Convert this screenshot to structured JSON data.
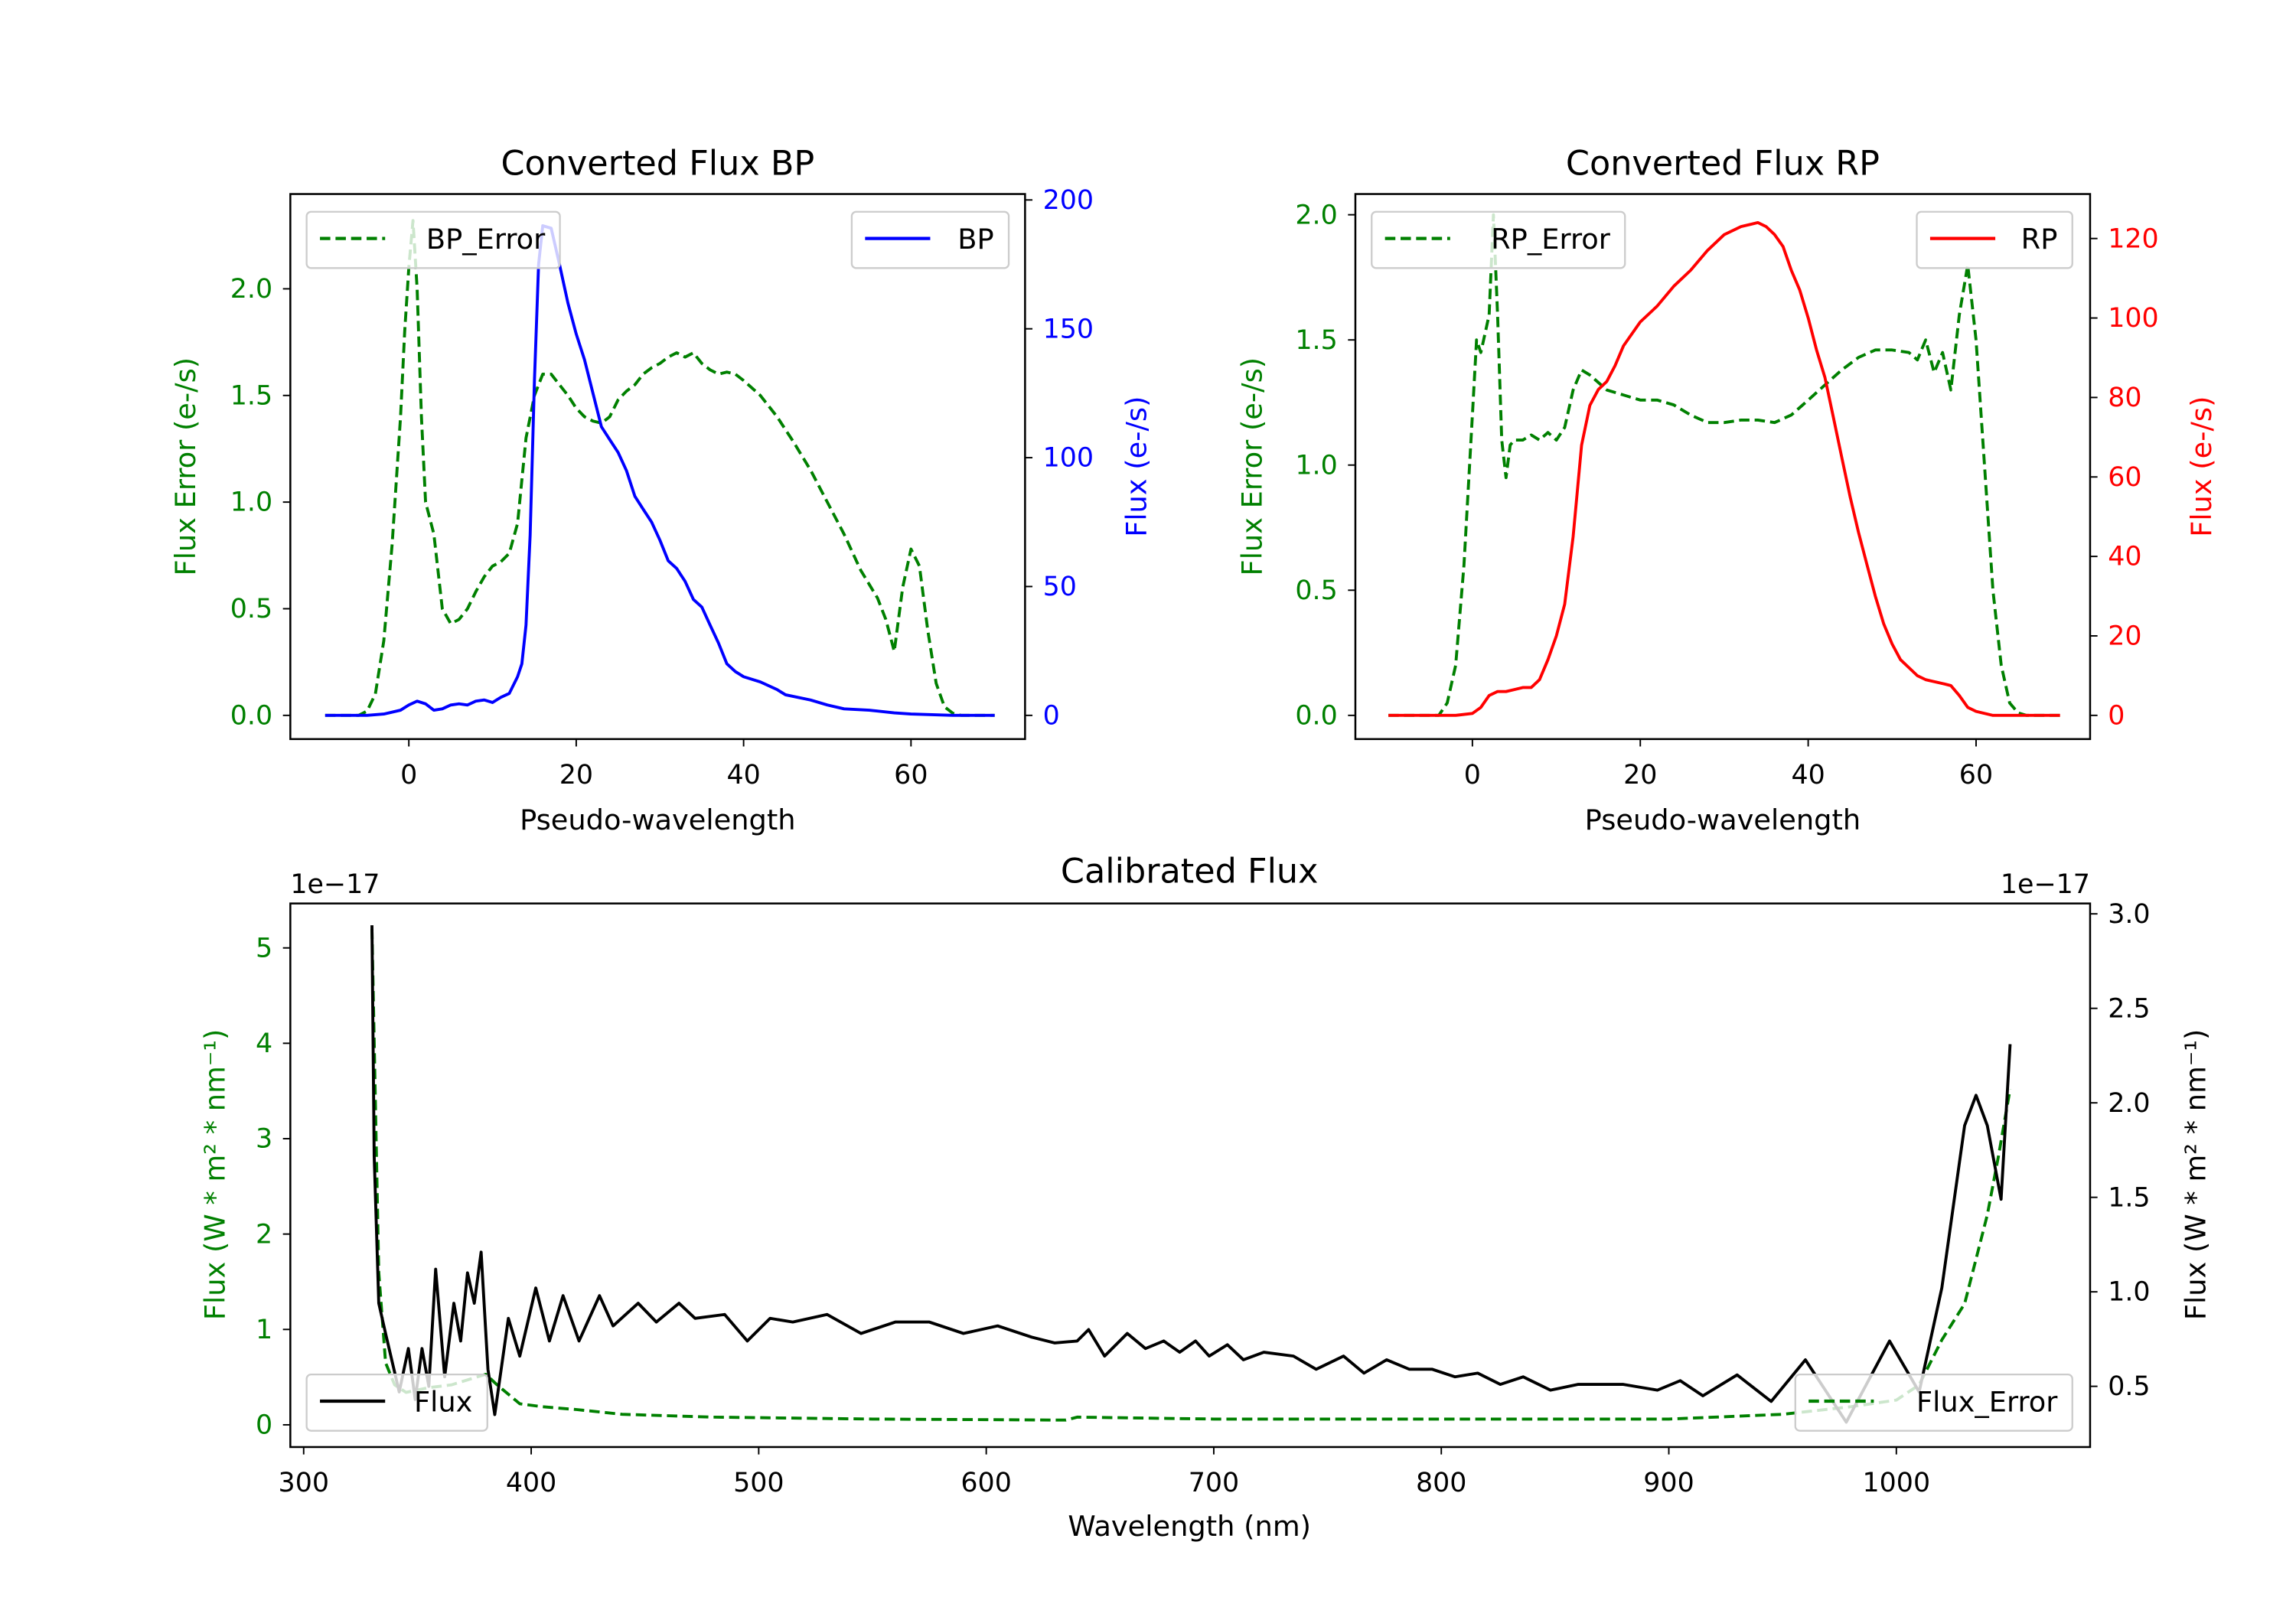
{
  "colors": {
    "green": "#008000",
    "blue": "#0000ff",
    "red": "#ff0000",
    "black": "#000000"
  },
  "chart_data": [
    {
      "type": "line",
      "title": "Converted Flux BP",
      "xlabel": "Pseudo-wavelength",
      "ylabel_left": "Flux Error (e-/s)",
      "ylabel_right": "Flux (e-/s)",
      "xlim": [
        -12,
        72
      ],
      "ylim_left": [
        -0.1,
        2.4
      ],
      "ylim_right": [
        -9,
        200
      ],
      "xticks": [
        "0",
        "20",
        "40",
        "60"
      ],
      "yticks_left": [
        "0.0",
        "0.5",
        "1.0",
        "1.5",
        "2.0"
      ],
      "yticks_right": [
        "0",
        "50",
        "100",
        "150",
        "200"
      ],
      "legend_left": {
        "label": "BP_Error",
        "placement": "upper left"
      },
      "legend_right": {
        "label": "BP",
        "placement": "upper right"
      },
      "series": [
        {
          "name": "BP_Error",
          "axis": "left",
          "style": "dashed",
          "color": "#008000",
          "x": [
            -10,
            -6,
            -5,
            -4,
            -3,
            -2,
            -1,
            -0.5,
            0,
            0.5,
            1,
            1.5,
            2,
            3,
            4,
            5,
            6,
            7,
            8,
            9,
            10,
            11,
            12,
            13,
            14,
            15,
            16,
            17,
            18,
            19,
            20,
            21,
            22,
            23,
            24,
            25,
            26,
            27,
            28,
            29,
            30,
            31,
            32,
            33,
            34,
            35,
            36,
            37,
            38,
            39,
            40,
            42,
            44,
            46,
            48,
            50,
            52,
            54,
            56,
            57,
            58,
            59,
            60,
            61,
            62,
            63,
            64,
            65,
            66,
            70
          ],
          "y": [
            0,
            0,
            0.02,
            0.1,
            0.35,
            0.8,
            1.4,
            1.8,
            2.1,
            2.32,
            2.0,
            1.4,
            1.0,
            0.85,
            0.5,
            0.43,
            0.45,
            0.5,
            0.58,
            0.65,
            0.7,
            0.72,
            0.76,
            0.9,
            1.3,
            1.5,
            1.6,
            1.6,
            1.55,
            1.5,
            1.44,
            1.4,
            1.38,
            1.37,
            1.4,
            1.48,
            1.52,
            1.55,
            1.6,
            1.63,
            1.65,
            1.68,
            1.7,
            1.68,
            1.7,
            1.65,
            1.62,
            1.6,
            1.61,
            1.6,
            1.57,
            1.5,
            1.4,
            1.28,
            1.15,
            1.0,
            0.85,
            0.68,
            0.55,
            0.45,
            0.3,
            0.6,
            0.78,
            0.7,
            0.4,
            0.15,
            0.04,
            0.01,
            0,
            0
          ]
        },
        {
          "name": "BP",
          "axis": "right",
          "style": "solid",
          "color": "#0000ff",
          "x": [
            -10,
            -5,
            -3,
            -1,
            0,
            1,
            2,
            3,
            4,
            5,
            6,
            7,
            8,
            9,
            10,
            11,
            12,
            13,
            13.5,
            14,
            14.5,
            15,
            15.5,
            16,
            17,
            18,
            19,
            20,
            21,
            22,
            23,
            24,
            25,
            26,
            27,
            28,
            29,
            30,
            31,
            32,
            33,
            34,
            35,
            36,
            37,
            38,
            39,
            40,
            42,
            44,
            45,
            48,
            50,
            52,
            55,
            58,
            60,
            65,
            70
          ],
          "y": [
            0,
            0,
            0.5,
            2,
            4,
            5.5,
            4.5,
            2,
            2.5,
            4,
            4.5,
            4,
            5.5,
            6,
            5,
            7,
            8.5,
            15,
            20,
            35,
            70,
            130,
            175,
            190,
            189,
            175,
            160,
            148,
            138,
            125,
            112,
            107,
            102,
            95,
            85,
            80,
            75,
            68,
            60,
            57,
            52,
            45,
            42,
            35,
            28,
            20,
            17,
            15,
            13,
            10,
            8,
            6,
            4,
            2.5,
            2,
            1,
            0.5,
            0,
            0
          ]
        }
      ]
    },
    {
      "type": "line",
      "title": "Converted Flux RP",
      "xlabel": "Pseudo-wavelength",
      "ylabel_left": "Flux Error (e-/s)",
      "ylabel_right": "Flux (e-/s)",
      "xlim": [
        -12,
        72
      ],
      "ylim_left": [
        -0.1,
        2.05
      ],
      "ylim_right": [
        -6,
        130
      ],
      "xticks": [
        "0",
        "20",
        "40",
        "60"
      ],
      "yticks_left": [
        "0.0",
        "0.5",
        "1.0",
        "1.5",
        "2.0"
      ],
      "yticks_right": [
        "0",
        "20",
        "40",
        "60",
        "80",
        "100",
        "120"
      ],
      "legend_left": {
        "label": "RP_Error",
        "placement": "upper left"
      },
      "legend_right": {
        "label": "RP",
        "placement": "upper right"
      },
      "series": [
        {
          "name": "RP_Error",
          "axis": "left",
          "style": "dashed",
          "color": "#008000",
          "x": [
            -10,
            -4,
            -3,
            -2,
            -1,
            0,
            0.5,
            1,
            2,
            2.5,
            3,
            3.5,
            4,
            4.5,
            5,
            6,
            7,
            8,
            9,
            10,
            11,
            12,
            13,
            14,
            16,
            18,
            20,
            22,
            24,
            26,
            28,
            30,
            32,
            34,
            36,
            38,
            40,
            42,
            44,
            46,
            48,
            50,
            52,
            53,
            54,
            55,
            56,
            57,
            58,
            59,
            60,
            61,
            62,
            63,
            64,
            65,
            66,
            70
          ],
          "y": [
            0,
            0,
            0.05,
            0.2,
            0.6,
            1.2,
            1.5,
            1.45,
            1.6,
            2.0,
            1.6,
            1.1,
            0.95,
            1.08,
            1.1,
            1.1,
            1.12,
            1.1,
            1.13,
            1.1,
            1.15,
            1.3,
            1.38,
            1.36,
            1.3,
            1.28,
            1.26,
            1.26,
            1.24,
            1.2,
            1.17,
            1.17,
            1.18,
            1.18,
            1.17,
            1.2,
            1.26,
            1.32,
            1.38,
            1.43,
            1.46,
            1.46,
            1.45,
            1.42,
            1.5,
            1.37,
            1.45,
            1.3,
            1.6,
            1.8,
            1.5,
            1.0,
            0.5,
            0.2,
            0.05,
            0.01,
            0,
            0
          ]
        },
        {
          "name": "RP",
          "axis": "right",
          "style": "solid",
          "color": "#ff0000",
          "x": [
            -10,
            -2,
            0,
            1,
            2,
            3,
            4,
            5,
            6,
            7,
            8,
            9,
            10,
            11,
            12,
            13,
            14,
            15,
            16,
            17,
            18,
            20,
            22,
            24,
            26,
            28,
            30,
            32,
            34,
            35,
            36,
            37,
            38,
            39,
            40,
            41,
            42,
            43,
            44,
            45,
            46,
            47,
            48,
            49,
            50,
            51,
            52,
            53,
            54,
            55,
            56,
            57,
            58,
            59,
            60,
            62,
            70
          ],
          "y": [
            0,
            0,
            0.5,
            2,
            5,
            6,
            6,
            6.5,
            7,
            7,
            9,
            14,
            20,
            28,
            45,
            68,
            78,
            82,
            84,
            88,
            93,
            99,
            103,
            108,
            112,
            117,
            121,
            123,
            124,
            123,
            121,
            118,
            112,
            107,
            100,
            92,
            85,
            75,
            65,
            55,
            46,
            38,
            30,
            23,
            18,
            14,
            12,
            10,
            9,
            8.5,
            8,
            7.5,
            5,
            2,
            1,
            0,
            0
          ]
        }
      ]
    },
    {
      "type": "line",
      "title": "Calibrated Flux",
      "xlabel": "Wavelength (nm)",
      "ylabel_left": "Flux (W * m² * nm⁻¹)",
      "ylabel_right": "Flux (W * m² * nm⁻¹)",
      "offset_left": "1e−17",
      "offset_right": "1e−17",
      "xlim": [
        294,
        1086
      ],
      "ylim_left": [
        -0.25,
        5.45
      ],
      "ylim_right": [
        0.18,
        3.05
      ],
      "xticks": [
        "300",
        "400",
        "500",
        "600",
        "700",
        "800",
        "900",
        "1000"
      ],
      "yticks_left": [
        "0",
        "1",
        "2",
        "3",
        "4",
        "5"
      ],
      "yticks_right": [
        "0.5",
        "1.0",
        "1.5",
        "2.0",
        "2.5",
        "3.0"
      ],
      "legend_left": {
        "label": "Flux",
        "placement": "lower left"
      },
      "legend_right": {
        "label": "Flux_Error",
        "placement": "lower right"
      },
      "series": [
        {
          "name": "Flux_Error",
          "axis": "left",
          "style": "dashed",
          "color": "#008000",
          "scale": "1e-17",
          "x": [
            330,
            333,
            336,
            340,
            345,
            355,
            365,
            380,
            385,
            395,
            405,
            420,
            440,
            480,
            550,
            635,
            640,
            700,
            900,
            950,
            980,
            1000,
            1010,
            1020,
            1030,
            1040,
            1045,
            1050
          ],
          "y": [
            5.2,
            1.6,
            0.65,
            0.42,
            0.34,
            0.39,
            0.42,
            0.53,
            0.42,
            0.22,
            0.19,
            0.16,
            0.11,
            0.08,
            0.06,
            0.05,
            0.08,
            0.06,
            0.06,
            0.11,
            0.19,
            0.26,
            0.42,
            0.89,
            1.27,
            2.2,
            2.83,
            3.52
          ]
        },
        {
          "name": "Flux",
          "axis": "right",
          "style": "solid",
          "color": "#000000",
          "scale": "1e-17",
          "x": [
            330,
            331,
            333,
            336,
            342,
            346,
            349,
            352,
            355,
            358,
            362,
            366,
            369,
            372,
            375,
            378,
            381,
            384,
            390,
            395,
            402,
            408,
            414,
            421,
            430,
            436,
            447,
            455,
            465,
            472,
            485,
            495,
            505,
            515,
            530,
            545,
            560,
            575,
            590,
            605,
            620,
            630,
            640,
            645,
            652,
            662,
            670,
            678,
            685,
            692,
            698,
            706,
            713,
            722,
            735,
            745,
            757,
            766,
            776,
            786,
            796,
            806,
            816,
            826,
            836,
            848,
            860,
            880,
            895,
            905,
            915,
            930,
            945,
            960,
            978,
            997,
            1010,
            1020,
            1030,
            1035,
            1040,
            1046,
            1050
          ],
          "y": [
            2.94,
            1.72,
            0.94,
            0.78,
            0.47,
            0.7,
            0.43,
            0.7,
            0.5,
            1.12,
            0.55,
            0.94,
            0.74,
            1.1,
            0.94,
            1.21,
            0.59,
            0.35,
            0.86,
            0.66,
            1.02,
            0.74,
            0.98,
            0.74,
            0.98,
            0.82,
            0.94,
            0.84,
            0.94,
            0.86,
            0.88,
            0.74,
            0.86,
            0.84,
            0.88,
            0.78,
            0.84,
            0.84,
            0.78,
            0.82,
            0.76,
            0.73,
            0.74,
            0.8,
            0.66,
            0.78,
            0.7,
            0.74,
            0.68,
            0.74,
            0.66,
            0.72,
            0.64,
            0.68,
            0.66,
            0.59,
            0.66,
            0.57,
            0.64,
            0.59,
            0.59,
            0.55,
            0.57,
            0.51,
            0.55,
            0.48,
            0.51,
            0.51,
            0.48,
            0.53,
            0.45,
            0.56,
            0.42,
            0.64,
            0.31,
            0.74,
            0.47,
            1.02,
            1.88,
            2.04,
            1.88,
            1.49,
            2.31
          ]
        }
      ]
    }
  ]
}
